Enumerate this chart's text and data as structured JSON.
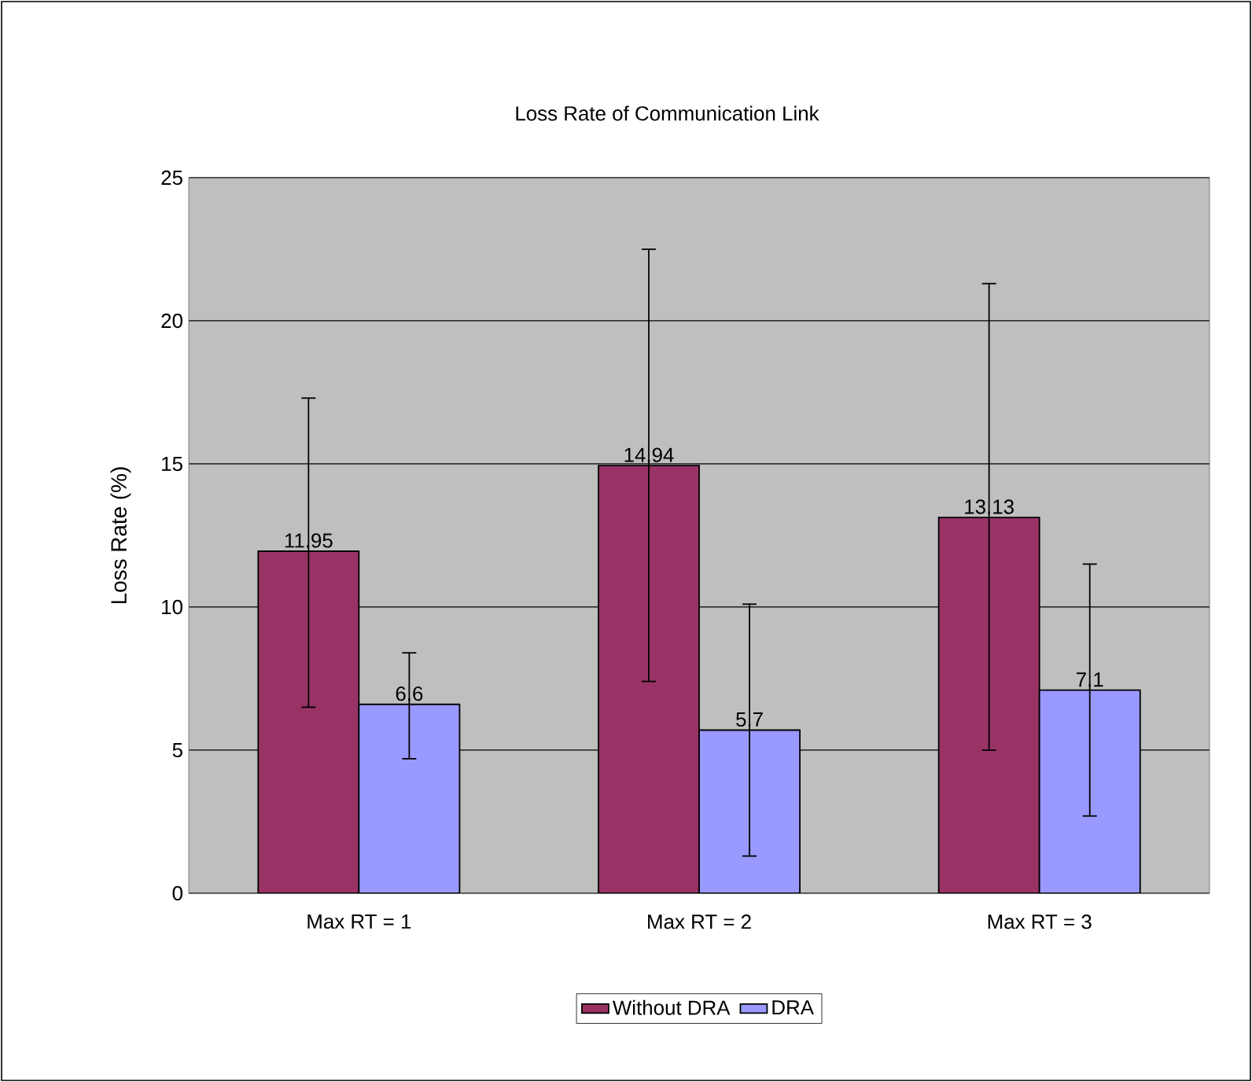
{
  "chart_data": {
    "type": "bar",
    "title": "Loss Rate of Communication Link",
    "ylabel": "Loss Rate (%)",
    "categories": [
      "Max RT = 1",
      "Max RT = 2",
      "Max RT = 3"
    ],
    "series": [
      {
        "name": "Without DRA",
        "color": "#993366",
        "values": [
          11.95,
          14.94,
          13.13
        ],
        "errors": [
          [
            6.5,
            17.3
          ],
          [
            7.4,
            22.5
          ],
          [
            5.0,
            21.3
          ]
        ]
      },
      {
        "name": "DRA",
        "color": "#9999ff",
        "values": [
          6.6,
          5.7,
          7.1
        ],
        "errors": [
          [
            4.7,
            8.4
          ],
          [
            1.3,
            10.1
          ],
          [
            2.7,
            11.5
          ]
        ]
      }
    ],
    "ylim": [
      0,
      25
    ],
    "yticks": [
      0,
      5,
      10,
      15,
      20,
      25
    ],
    "grid": "y",
    "legend": "bottom",
    "data_labels": true
  }
}
